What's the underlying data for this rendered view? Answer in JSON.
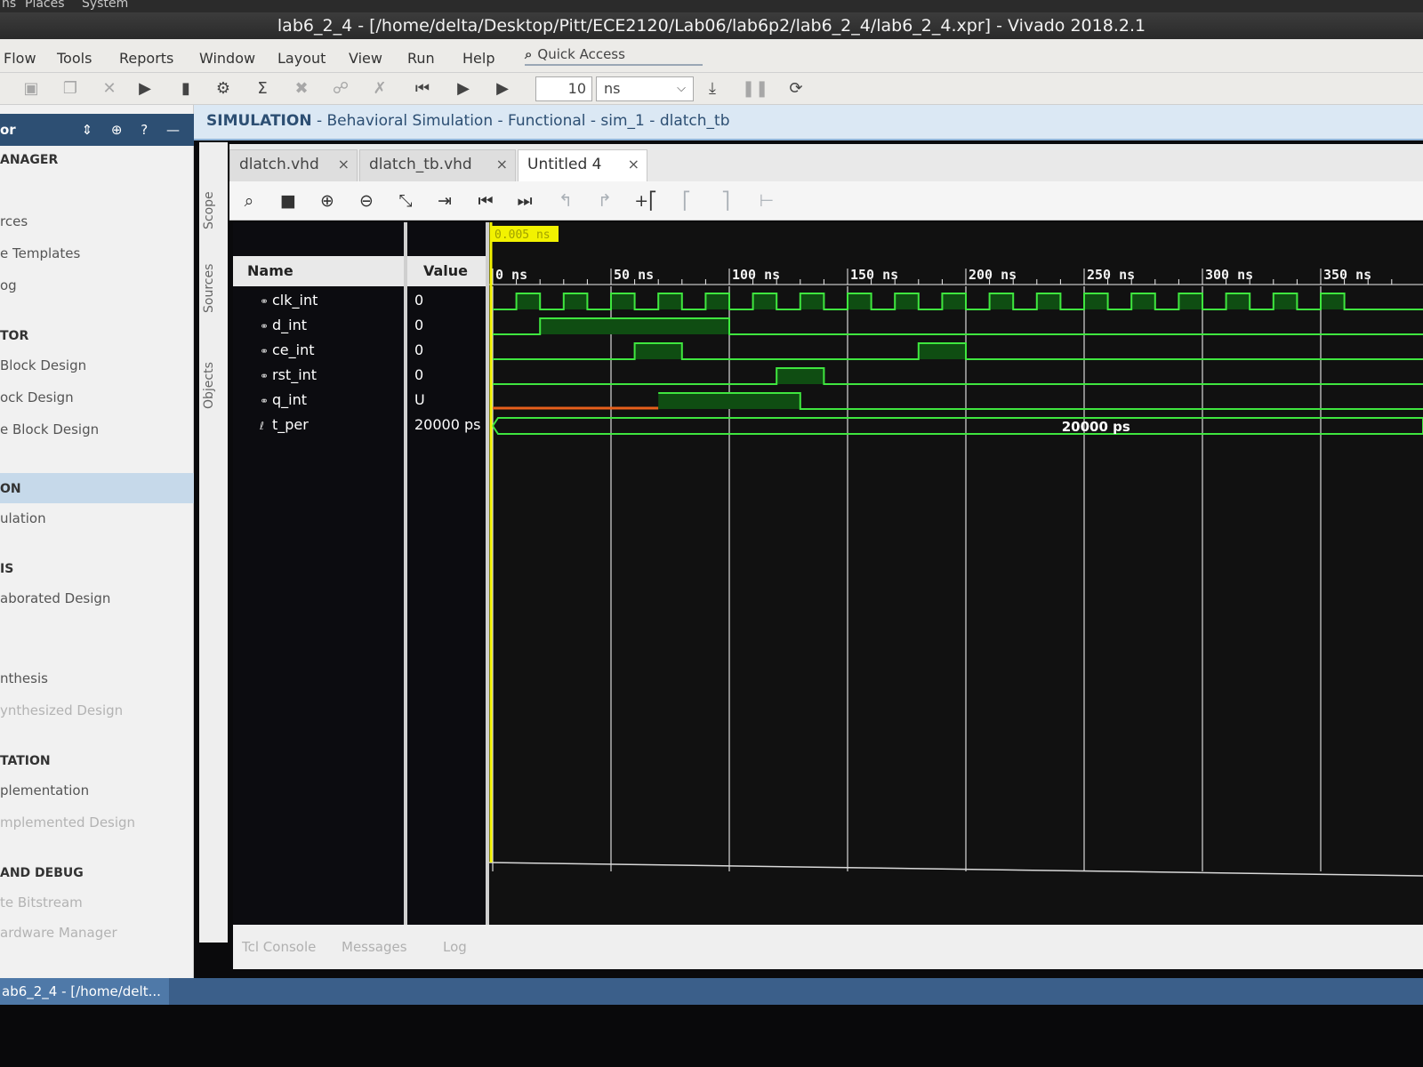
{
  "system_bar": {
    "items": [
      "ns",
      "Places",
      "System"
    ]
  },
  "window": {
    "title": "lab6_2_4 - [/home/delta/Desktop/Pitt/ECE2120/Lab06/lab6p2/lab6_2_4/lab6_2_4.xpr] - Vivado 2018.2.1"
  },
  "menu": [
    "Flow",
    "Tools",
    "Reports",
    "Window",
    "Layout",
    "View",
    "Run",
    "Help"
  ],
  "quick_access": {
    "label": "Quick Access",
    "icon": "search-icon"
  },
  "toolbar": {
    "run_time_value": "10",
    "run_time_unit": "ns",
    "icons": [
      "save-icon",
      "copy-icon",
      "delete-icon",
      "run-icon",
      "step-icon",
      "settings-icon",
      "sigma-icon",
      "cut-icon",
      "link-icon",
      "cross-icon",
      "restart-icon",
      "run-all-icon",
      "run-for-icon",
      "break-icon",
      "pause-icon",
      "relaunch-icon"
    ]
  },
  "flow_navigator": {
    "header": "or",
    "items": [
      {
        "label": "ANAGER",
        "kind": "section"
      },
      {
        "label": "rces",
        "kind": "item"
      },
      {
        "label": "e Templates",
        "kind": "item"
      },
      {
        "label": "og",
        "kind": "item"
      },
      {
        "label": "TOR",
        "kind": "section"
      },
      {
        "label": "Block Design",
        "kind": "item"
      },
      {
        "label": "ock Design",
        "kind": "item"
      },
      {
        "label": "e Block Design",
        "kind": "item"
      },
      {
        "label": "ON",
        "kind": "section-selected"
      },
      {
        "label": "ulation",
        "kind": "item"
      },
      {
        "label": "IS",
        "kind": "section"
      },
      {
        "label": "aborated Design",
        "kind": "item"
      },
      {
        "label": "nthesis",
        "kind": "item"
      },
      {
        "label": "ynthesized Design",
        "kind": "faded"
      },
      {
        "label": "TATION",
        "kind": "section"
      },
      {
        "label": "plementation",
        "kind": "item"
      },
      {
        "label": "mplemented Design",
        "kind": "faded"
      },
      {
        "label": "AND DEBUG",
        "kind": "section"
      },
      {
        "label": "te Bitstream",
        "kind": "faded"
      },
      {
        "label": "ardware Manager",
        "kind": "faded"
      }
    ]
  },
  "sim_header": {
    "bold": "SIMULATION",
    "rest": " - Behavioral Simulation - Functional - sim_1 - dlatch_tb"
  },
  "side_tabs": [
    "Scope",
    "Sources",
    "Objects"
  ],
  "editor_tabs": [
    {
      "label": "dlatch.vhd",
      "active": false
    },
    {
      "label": "dlatch_tb.vhd",
      "active": false
    },
    {
      "label": "Untitled 4",
      "active": true
    }
  ],
  "wave_toolbar": [
    "search-icon",
    "save-icon",
    "zoom-in-icon",
    "zoom-out-icon",
    "zoom-fit-icon",
    "go-to-cursor-icon",
    "go-to-start-icon",
    "go-to-end-icon",
    "previous-transition-icon",
    "next-transition-icon",
    "add-marker-icon",
    "previous-marker-icon",
    "next-marker-icon",
    "swap-cursors-icon"
  ],
  "waveform": {
    "name_header": "Name",
    "value_header": "Value",
    "cursor_label": "0.005 ns",
    "time_ticks": [
      "0 ns",
      "50 ns",
      "100 ns",
      "150 ns",
      "200 ns",
      "250 ns",
      "300 ns",
      "350 ns"
    ],
    "tick_ns": [
      0,
      50,
      100,
      150,
      200,
      250,
      300,
      350
    ],
    "signals": [
      {
        "name": "clk_int",
        "value": "0",
        "type": "bit",
        "transitions_ns": [
          0,
          10,
          20,
          30,
          40,
          50,
          60,
          70,
          80,
          90,
          100,
          110,
          120,
          130,
          140,
          150,
          160,
          170,
          180,
          190,
          200,
          210,
          220,
          230,
          240,
          250,
          260,
          270,
          280,
          290,
          300,
          310,
          320,
          330,
          340,
          350,
          360
        ],
        "initial": 0
      },
      {
        "name": "d_int",
        "value": "0",
        "type": "bit",
        "transitions_ns": [
          20,
          100
        ],
        "initial": 0
      },
      {
        "name": "ce_int",
        "value": "0",
        "type": "bit",
        "transitions_ns": [
          60,
          80,
          180,
          200
        ],
        "initial": 0
      },
      {
        "name": "rst_int",
        "value": "0",
        "type": "bit",
        "transitions_ns": [
          120,
          140
        ],
        "initial": 0
      },
      {
        "name": "q_int",
        "value": "U",
        "type": "bit",
        "transitions_ns": [
          70,
          130
        ],
        "initial": "U"
      },
      {
        "name": "t_per",
        "value": "20000 ps",
        "type": "bus",
        "bus_value": "20000 ps"
      }
    ]
  },
  "bottom_tabs": [
    "Tcl Console",
    "Messages",
    "Log"
  ],
  "taskbar": {
    "item": "ab6_2_4 - [/home/delt..."
  },
  "colors": {
    "wave_green": "#3fe63f",
    "undefined_orange": "#e8601c",
    "cursor_yellow": "#f2f200",
    "high_fill": "#0f4d12",
    "brand_blue": "#2d4f73"
  }
}
